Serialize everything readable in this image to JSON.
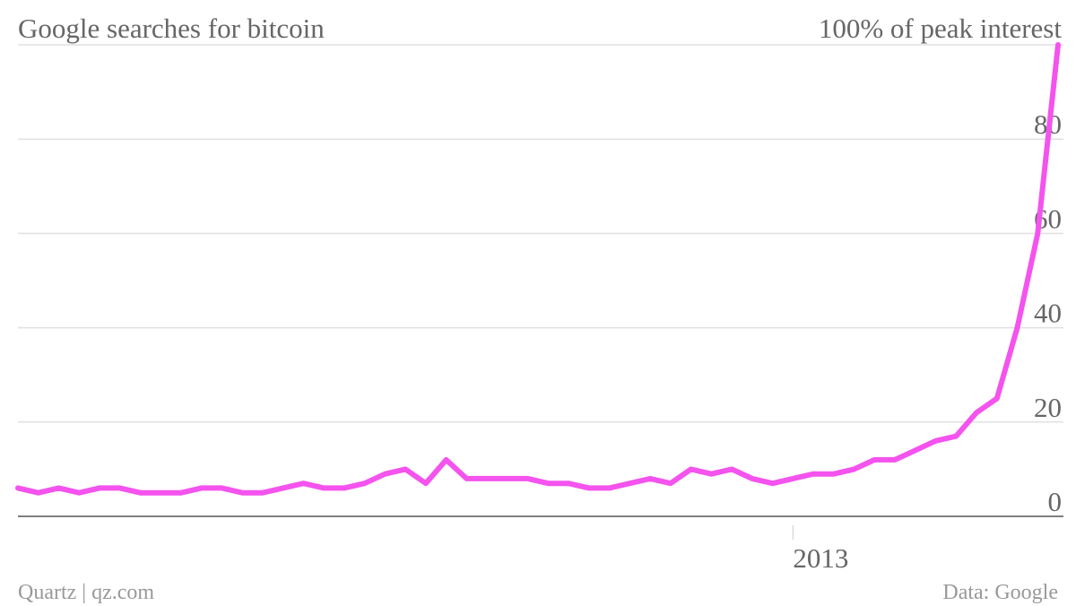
{
  "chart_data": {
    "type": "line",
    "title": "Google searches for bitcoin",
    "ylabel": "100% of peak interest",
    "source": "Data: Google",
    "credit": "Quartz | qz.com",
    "ylim": [
      0,
      100
    ],
    "yticks": [
      0,
      20,
      40,
      60,
      80
    ],
    "xticks": [
      {
        "label": "2013",
        "index": 38
      }
    ],
    "colors": {
      "line": "#f453ee",
      "text": "#666666",
      "grid": "#e0e0e0",
      "axis": "#555555"
    },
    "series": [
      {
        "values": [
          6,
          5,
          6,
          5,
          6,
          6,
          5,
          5,
          5,
          6,
          6,
          5,
          5,
          6,
          7,
          6,
          6,
          7,
          9,
          10,
          7,
          12,
          8,
          8,
          8,
          8,
          7,
          7,
          6,
          6,
          7,
          8,
          7,
          10,
          9,
          10,
          8,
          7,
          8,
          9,
          9,
          10,
          12,
          12,
          14,
          16,
          17,
          22,
          25,
          40,
          60,
          100
        ]
      }
    ]
  }
}
